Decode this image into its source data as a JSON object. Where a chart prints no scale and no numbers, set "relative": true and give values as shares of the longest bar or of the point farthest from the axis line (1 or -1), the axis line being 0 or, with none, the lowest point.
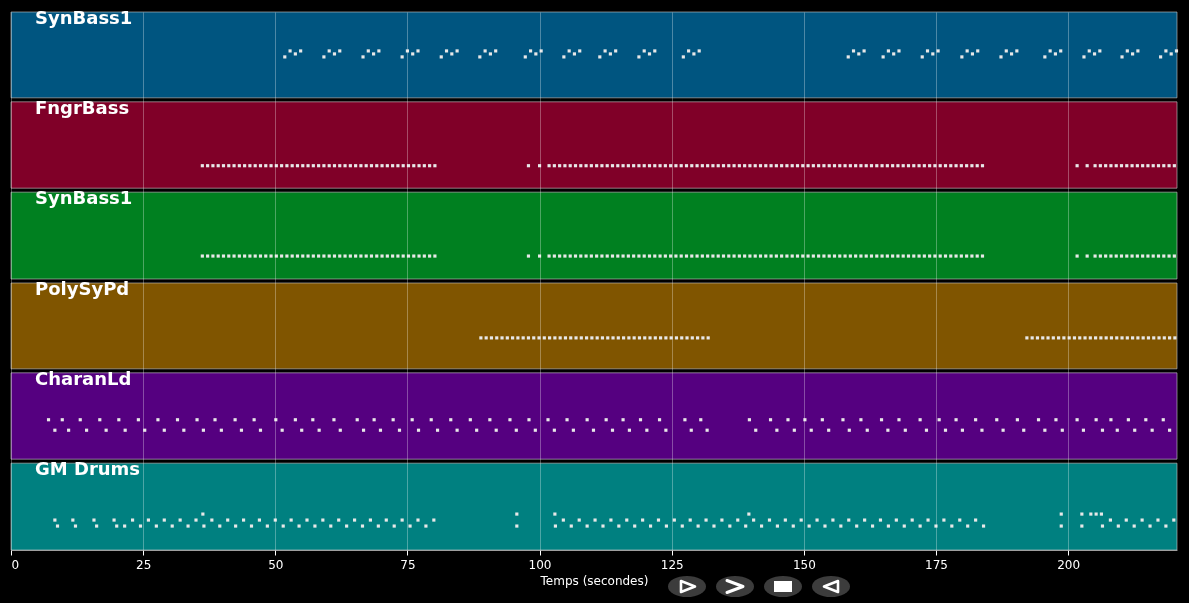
{
  "chart_data": {
    "type": "scatter",
    "relative": true,
    "marker": "square",
    "grid": "x",
    "xlabel": "Temps (secondes)",
    "xlim": [
      0,
      220.6
    ],
    "xticks": [
      0,
      25,
      50,
      75,
      100,
      125,
      150,
      175,
      200
    ],
    "bands": [
      {
        "axis": "y",
        "from": 0.906,
        "to": 1.078,
        "color": "#005580",
        "label": "SynBass1"
      },
      {
        "axis": "y",
        "from": 0.725,
        "to": 0.898,
        "color": "#800028",
        "label": "FngrBass"
      },
      {
        "axis": "y",
        "from": 0.543,
        "to": 0.717,
        "color": "#008020",
        "label": "SynBass1"
      },
      {
        "axis": "y",
        "from": 0.363,
        "to": 0.535,
        "color": "#805500",
        "label": "PolySyPd"
      },
      {
        "axis": "y",
        "from": 0.182,
        "to": 0.355,
        "color": "#550080",
        "label": "CharanLd"
      },
      {
        "axis": "y",
        "from": 0,
        "to": 0.174,
        "color": "#008080",
        "label": "GM Drums"
      }
    ],
    "series": [
      {
        "color": "#e8e8e8",
        "x": [
          51.8,
          52.8,
          53.8,
          54.8,
          59.2,
          60.2,
          61.2,
          62.2,
          66.6,
          67.6,
          68.6,
          69.6,
          74.0,
          75.0,
          76.0,
          77.0,
          81.4,
          82.4,
          83.4,
          84.4,
          88.7,
          89.7,
          90.7,
          91.7,
          97.3,
          98.3,
          99.3,
          100.3,
          104.6,
          105.6,
          106.6,
          107.6,
          111.4,
          112.4,
          113.4,
          114.4,
          118.8,
          119.8,
          120.8,
          121.8,
          127.2,
          128.2,
          129.2,
          130.2,
          158.4,
          159.4,
          160.4,
          161.4,
          165.0,
          166.0,
          167.0,
          168.0,
          172.4,
          173.4,
          174.4,
          175.4,
          179.9,
          180.9,
          181.9,
          182.9,
          187.3,
          188.3,
          189.3,
          190.3,
          195.6,
          196.6,
          197.6,
          198.6,
          203.0,
          204.0,
          205.0,
          206.0,
          210.2,
          211.2,
          212.2,
          213.2,
          217.5,
          218.5,
          219.5,
          220.5
        ],
        "values": [
          0.988,
          1,
          0.994,
          1,
          0.988,
          1,
          0.994,
          1,
          0.988,
          1,
          0.994,
          1,
          0.988,
          1,
          0.994,
          1,
          0.988,
          1,
          0.994,
          1,
          0.988,
          1,
          0.994,
          1,
          0.988,
          1,
          0.994,
          1,
          0.988,
          1,
          0.994,
          1,
          0.988,
          1,
          0.994,
          1,
          0.988,
          1,
          0.994,
          1,
          0.988,
          1,
          0.994,
          1,
          0.988,
          1,
          0.994,
          1,
          0.988,
          1,
          0.994,
          1,
          0.988,
          1,
          0.994,
          1,
          0.988,
          1,
          0.994,
          1,
          0.988,
          1,
          0.994,
          1,
          0.988,
          1,
          0.994,
          1,
          0.988,
          1,
          0.994,
          1,
          0.988,
          1,
          0.994,
          1,
          0.988,
          1,
          0.994,
          1
        ]
      },
      {
        "color": "#e8e8e8",
        "x": [
          36.2,
          37.2,
          38.2,
          39.2,
          40.2,
          41.2,
          42.2,
          43.2,
          44.2,
          45.2,
          46.2,
          47.2,
          48.2,
          49.2,
          50.2,
          51.2,
          52.2,
          53.2,
          54.2,
          55.2,
          56.2,
          57.2,
          58.2,
          59.2,
          60.2,
          61.2,
          62.2,
          63.2,
          64.2,
          65.2,
          66.2,
          67.2,
          68.2,
          69.2,
          70.2,
          71.2,
          72.2,
          73.2,
          74.2,
          75.2,
          76.2,
          77.2,
          78.2,
          79.2,
          80.2,
          97.9,
          100.0,
          101.8,
          102.8,
          103.8,
          104.8,
          105.8,
          106.8,
          107.8,
          108.8,
          109.8,
          110.8,
          111.8,
          112.8,
          113.8,
          114.8,
          115.8,
          116.8,
          117.8,
          118.8,
          119.8,
          120.8,
          121.8,
          122.8,
          123.8,
          124.8,
          125.8,
          126.8,
          127.8,
          128.8,
          129.8,
          130.8,
          131.8,
          132.8,
          133.8,
          134.8,
          135.8,
          136.8,
          137.8,
          138.8,
          139.8,
          140.8,
          141.8,
          142.8,
          143.8,
          144.8,
          145.8,
          146.8,
          147.8,
          148.8,
          149.8,
          150.8,
          151.8,
          152.8,
          153.8,
          154.8,
          155.8,
          156.8,
          157.8,
          158.8,
          159.8,
          160.8,
          161.8,
          162.8,
          163.8,
          164.8,
          165.8,
          166.8,
          167.8,
          168.8,
          169.8,
          170.8,
          171.8,
          172.8,
          173.8,
          174.8,
          175.8,
          176.8,
          177.8,
          178.8,
          179.8,
          180.8,
          181.8,
          182.8,
          183.8,
          201.7,
          203.6,
          205.1,
          206.1,
          207.1,
          208.1,
          209.1,
          210.1,
          211.1,
          212.1,
          213.1,
          214.1,
          215.1,
          216.1,
          217.1,
          218.1,
          219.1,
          220.1
        ],
        "values": [
          0.77,
          0.77,
          0.77,
          0.77,
          0.77,
          0.77,
          0.77,
          0.77,
          0.77,
          0.77,
          0.77,
          0.77,
          0.77,
          0.77,
          0.77,
          0.77,
          0.77,
          0.77,
          0.77,
          0.77,
          0.77,
          0.77,
          0.77,
          0.77,
          0.77,
          0.77,
          0.77,
          0.77,
          0.77,
          0.77,
          0.77,
          0.77,
          0.77,
          0.77,
          0.77,
          0.77,
          0.77,
          0.77,
          0.77,
          0.77,
          0.77,
          0.77,
          0.77,
          0.77,
          0.77,
          0.77,
          0.77,
          0.77,
          0.77,
          0.77,
          0.77,
          0.77,
          0.77,
          0.77,
          0.77,
          0.77,
          0.77,
          0.77,
          0.77,
          0.77,
          0.77,
          0.77,
          0.77,
          0.77,
          0.77,
          0.77,
          0.77,
          0.77,
          0.77,
          0.77,
          0.77,
          0.77,
          0.77,
          0.77,
          0.77,
          0.77,
          0.77,
          0.77,
          0.77,
          0.77,
          0.77,
          0.77,
          0.77,
          0.77,
          0.77,
          0.77,
          0.77,
          0.77,
          0.77,
          0.77,
          0.77,
          0.77,
          0.77,
          0.77,
          0.77,
          0.77,
          0.77,
          0.77,
          0.77,
          0.77,
          0.77,
          0.77,
          0.77,
          0.77,
          0.77,
          0.77,
          0.77,
          0.77,
          0.77,
          0.77,
          0.77,
          0.77,
          0.77,
          0.77,
          0.77,
          0.77,
          0.77,
          0.77,
          0.77,
          0.77,
          0.77,
          0.77,
          0.77,
          0.77,
          0.77,
          0.77,
          0.77,
          0.77,
          0.77,
          0.77,
          0.77,
          0.77,
          0.77,
          0.77,
          0.77,
          0.77,
          0.77,
          0.77,
          0.77,
          0.77,
          0.77,
          0.77,
          0.77,
          0.77,
          0.77,
          0.77,
          0.77,
          0.77
        ]
      },
      {
        "color": "#e8e8e8",
        "x": [
          36.2,
          37.2,
          38.2,
          39.2,
          40.2,
          41.2,
          42.2,
          43.2,
          44.2,
          45.2,
          46.2,
          47.2,
          48.2,
          49.2,
          50.2,
          51.2,
          52.2,
          53.2,
          54.2,
          55.2,
          56.2,
          57.2,
          58.2,
          59.2,
          60.2,
          61.2,
          62.2,
          63.2,
          64.2,
          65.2,
          66.2,
          67.2,
          68.2,
          69.2,
          70.2,
          71.2,
          72.2,
          73.2,
          74.2,
          75.2,
          76.2,
          77.2,
          78.2,
          79.2,
          80.2,
          97.9,
          100.0,
          101.8,
          102.8,
          103.8,
          104.8,
          105.8,
          106.8,
          107.8,
          108.8,
          109.8,
          110.8,
          111.8,
          112.8,
          113.8,
          114.8,
          115.8,
          116.8,
          117.8,
          118.8,
          119.8,
          120.8,
          121.8,
          122.8,
          123.8,
          124.8,
          125.8,
          126.8,
          127.8,
          128.8,
          129.8,
          130.8,
          131.8,
          132.8,
          133.8,
          134.8,
          135.8,
          136.8,
          137.8,
          138.8,
          139.8,
          140.8,
          141.8,
          142.8,
          143.8,
          144.8,
          145.8,
          146.8,
          147.8,
          148.8,
          149.8,
          150.8,
          151.8,
          152.8,
          153.8,
          154.8,
          155.8,
          156.8,
          157.8,
          158.8,
          159.8,
          160.8,
          161.8,
          162.8,
          163.8,
          164.8,
          165.8,
          166.8,
          167.8,
          168.8,
          169.8,
          170.8,
          171.8,
          172.8,
          173.8,
          174.8,
          175.8,
          176.8,
          177.8,
          178.8,
          179.8,
          180.8,
          181.8,
          182.8,
          183.8,
          201.7,
          203.6,
          205.1,
          206.1,
          207.1,
          208.1,
          209.1,
          210.1,
          211.1,
          212.1,
          213.1,
          214.1,
          215.1,
          216.1,
          217.1,
          218.1,
          219.1,
          220.1
        ],
        "values": [
          0.589,
          0.589,
          0.589,
          0.589,
          0.589,
          0.589,
          0.589,
          0.589,
          0.589,
          0.589,
          0.589,
          0.589,
          0.589,
          0.589,
          0.589,
          0.589,
          0.589,
          0.589,
          0.589,
          0.589,
          0.589,
          0.589,
          0.589,
          0.589,
          0.589,
          0.589,
          0.589,
          0.589,
          0.589,
          0.589,
          0.589,
          0.589,
          0.589,
          0.589,
          0.589,
          0.589,
          0.589,
          0.589,
          0.589,
          0.589,
          0.589,
          0.589,
          0.589,
          0.589,
          0.589,
          0.589,
          0.589,
          0.589,
          0.589,
          0.589,
          0.589,
          0.589,
          0.589,
          0.589,
          0.589,
          0.589,
          0.589,
          0.589,
          0.589,
          0.589,
          0.589,
          0.589,
          0.589,
          0.589,
          0.589,
          0.589,
          0.589,
          0.589,
          0.589,
          0.589,
          0.589,
          0.589,
          0.589,
          0.589,
          0.589,
          0.589,
          0.589,
          0.589,
          0.589,
          0.589,
          0.589,
          0.589,
          0.589,
          0.589,
          0.589,
          0.589,
          0.589,
          0.589,
          0.589,
          0.589,
          0.589,
          0.589,
          0.589,
          0.589,
          0.589,
          0.589,
          0.589,
          0.589,
          0.589,
          0.589,
          0.589,
          0.589,
          0.589,
          0.589,
          0.589,
          0.589,
          0.589,
          0.589,
          0.589,
          0.589,
          0.589,
          0.589,
          0.589,
          0.589,
          0.589,
          0.589,
          0.589,
          0.589,
          0.589,
          0.589,
          0.589,
          0.589,
          0.589,
          0.589,
          0.589,
          0.589,
          0.589,
          0.589,
          0.589,
          0.589,
          0.589,
          0.589,
          0.589,
          0.589,
          0.589,
          0.589,
          0.589,
          0.589,
          0.589,
          0.589,
          0.589,
          0.589,
          0.589,
          0.589,
          0.589,
          0.589,
          0.589,
          0.589
        ]
      },
      {
        "color": "#e8e8e8",
        "x": [
          88.9,
          89.9,
          90.9,
          91.9,
          92.9,
          93.9,
          94.9,
          95.9,
          96.9,
          97.9,
          98.9,
          99.9,
          100.9,
          101.9,
          102.9,
          103.9,
          104.9,
          105.9,
          106.9,
          107.9,
          108.9,
          109.9,
          110.9,
          111.9,
          112.9,
          113.9,
          114.9,
          115.9,
          116.9,
          117.9,
          118.9,
          119.9,
          120.9,
          121.9,
          122.9,
          123.9,
          124.9,
          125.9,
          126.9,
          127.9,
          128.9,
          129.9,
          130.9,
          131.9,
          192.2,
          193.2,
          194.2,
          195.2,
          196.2,
          197.2,
          198.2,
          199.2,
          200.2,
          201.2,
          202.2,
          203.2,
          204.2,
          205.2,
          206.2,
          207.2,
          208.2,
          209.2,
          210.2,
          211.2,
          212.2,
          213.2,
          214.2,
          215.2,
          216.2,
          217.2,
          218.2,
          219.2,
          220.2
        ],
        "values": [
          0.425,
          0.425,
          0.425,
          0.425,
          0.425,
          0.425,
          0.425,
          0.425,
          0.425,
          0.425,
          0.425,
          0.425,
          0.425,
          0.425,
          0.425,
          0.425,
          0.425,
          0.425,
          0.425,
          0.425,
          0.425,
          0.425,
          0.425,
          0.425,
          0.425,
          0.425,
          0.425,
          0.425,
          0.425,
          0.425,
          0.425,
          0.425,
          0.425,
          0.425,
          0.425,
          0.425,
          0.425,
          0.425,
          0.425,
          0.425,
          0.425,
          0.425,
          0.425,
          0.425,
          0.425,
          0.425,
          0.425,
          0.425,
          0.425,
          0.425,
          0.425,
          0.425,
          0.425,
          0.425,
          0.425,
          0.425,
          0.425,
          0.425,
          0.425,
          0.425,
          0.425,
          0.425,
          0.425,
          0.425,
          0.425,
          0.425,
          0.425,
          0.425,
          0.425,
          0.425,
          0.425,
          0.425,
          0.425
        ]
      },
      {
        "color": "#e8e8e8",
        "x": [
          7.1,
          8.3,
          9.7,
          10.9,
          13.1,
          14.3,
          16.8,
          18.0,
          20.4,
          21.6,
          24.1,
          25.3,
          27.8,
          29.0,
          31.5,
          32.7,
          35.2,
          36.4,
          38.6,
          39.8,
          42.4,
          43.6,
          46.0,
          47.2,
          50.1,
          51.3,
          53.8,
          55.0,
          57.1,
          58.3,
          61.1,
          62.3,
          65.5,
          66.7,
          68.7,
          69.9,
          72.3,
          73.5,
          75.9,
          77.1,
          79.5,
          80.7,
          83.2,
          84.4,
          86.9,
          88.1,
          90.6,
          91.8,
          94.4,
          95.6,
          98.0,
          99.2,
          101.6,
          102.8,
          105.2,
          106.4,
          109.0,
          110.2,
          112.6,
          113.8,
          115.8,
          117.0,
          119.1,
          120.3,
          122.7,
          123.9,
          127.5,
          128.7,
          130.5,
          131.7,
          139.7,
          140.9,
          143.7,
          144.9,
          147.0,
          148.2,
          150.2,
          151.4,
          153.5,
          154.7,
          157.4,
          158.6,
          160.8,
          162.0,
          164.7,
          165.9,
          168.0,
          169.2,
          172.0,
          173.2,
          175.6,
          176.8,
          178.8,
          180.0,
          182.5,
          183.7,
          186.5,
          187.7,
          190.4,
          191.6,
          194.4,
          195.6,
          197.7,
          198.9,
          201.7,
          202.9,
          205.3,
          206.5,
          208.1,
          209.3,
          211.4,
          212.6,
          214.7,
          215.9,
          218.0,
          219.2
        ],
        "values": [
          0.261,
          0.24,
          0.261,
          0.24,
          0.261,
          0.24,
          0.261,
          0.24,
          0.261,
          0.24,
          0.261,
          0.24,
          0.261,
          0.24,
          0.261,
          0.24,
          0.261,
          0.24,
          0.261,
          0.24,
          0.261,
          0.24,
          0.261,
          0.24,
          0.261,
          0.24,
          0.261,
          0.24,
          0.261,
          0.24,
          0.261,
          0.24,
          0.261,
          0.24,
          0.261,
          0.24,
          0.261,
          0.24,
          0.261,
          0.24,
          0.261,
          0.24,
          0.261,
          0.24,
          0.261,
          0.24,
          0.261,
          0.24,
          0.261,
          0.24,
          0.261,
          0.24,
          0.261,
          0.24,
          0.261,
          0.24,
          0.261,
          0.24,
          0.261,
          0.24,
          0.261,
          0.24,
          0.261,
          0.24,
          0.261,
          0.24,
          0.261,
          0.24,
          0.261,
          0.24,
          0.261,
          0.24,
          0.261,
          0.24,
          0.261,
          0.24,
          0.261,
          0.24,
          0.261,
          0.24,
          0.261,
          0.24,
          0.261,
          0.24,
          0.261,
          0.24,
          0.261,
          0.24,
          0.261,
          0.24,
          0.261,
          0.24,
          0.261,
          0.24,
          0.261,
          0.24,
          0.261,
          0.24,
          0.261,
          0.24,
          0.261,
          0.24,
          0.261,
          0.24,
          0.261,
          0.24,
          0.261,
          0.24,
          0.261,
          0.24,
          0.261,
          0.24,
          0.261,
          0.24,
          0.261,
          0.24
        ]
      },
      {
        "color": "#e8e8e8",
        "x": [
          8.3,
          8.8,
          11.7,
          12.2,
          15.7,
          16.2,
          19.5,
          20.0,
          21.5,
          23,
          24.5,
          26,
          27.5,
          29,
          30.5,
          32,
          33.5,
          35,
          36.3,
          36.5,
          38,
          39.5,
          41,
          42.5,
          44,
          45.5,
          47,
          48.5,
          50,
          51.5,
          53,
          54.5,
          56,
          57.5,
          59,
          60.5,
          62,
          63.5,
          65,
          66.5,
          68,
          69.5,
          71,
          72.5,
          74,
          75.5,
          77,
          78.5,
          80,
          95.7,
          95.7,
          102.9,
          103,
          104.5,
          106,
          107.5,
          109,
          110.5,
          112,
          113.5,
          115,
          116.5,
          118,
          119.5,
          121,
          122.5,
          124,
          125.5,
          127,
          128.5,
          130,
          131.5,
          133,
          134.5,
          136,
          137.5,
          139,
          139.6,
          140.5,
          142,
          143.5,
          145,
          146.5,
          148,
          149.5,
          151,
          152.5,
          154,
          155.5,
          157,
          158.5,
          160,
          161.5,
          163,
          164.5,
          166,
          167.5,
          169,
          170.5,
          172,
          173.5,
          175,
          176.5,
          178,
          179.5,
          181,
          182.5,
          184,
          198.7,
          198.7,
          202.6,
          202.6,
          204.3,
          205.3,
          206.3,
          206.5,
          208,
          209.5,
          211,
          212.5,
          214,
          215.5,
          217,
          218.5,
          220
        ],
        "values": [
          0.06,
          0.048,
          0.06,
          0.048,
          0.06,
          0.048,
          0.06,
          0.048,
          0.048,
          0.06,
          0.048,
          0.06,
          0.048,
          0.06,
          0.048,
          0.06,
          0.048,
          0.06,
          0.072,
          0.048,
          0.06,
          0.048,
          0.06,
          0.048,
          0.06,
          0.048,
          0.06,
          0.048,
          0.06,
          0.048,
          0.06,
          0.048,
          0.06,
          0.048,
          0.06,
          0.048,
          0.06,
          0.048,
          0.06,
          0.048,
          0.06,
          0.048,
          0.06,
          0.048,
          0.06,
          0.048,
          0.06,
          0.048,
          0.06,
          0.072,
          0.048,
          0.072,
          0.048,
          0.06,
          0.048,
          0.06,
          0.048,
          0.06,
          0.048,
          0.06,
          0.048,
          0.06,
          0.048,
          0.06,
          0.048,
          0.06,
          0.048,
          0.06,
          0.048,
          0.06,
          0.048,
          0.06,
          0.048,
          0.06,
          0.048,
          0.06,
          0.048,
          0.072,
          0.06,
          0.048,
          0.06,
          0.048,
          0.06,
          0.048,
          0.06,
          0.048,
          0.06,
          0.048,
          0.06,
          0.048,
          0.06,
          0.048,
          0.06,
          0.048,
          0.06,
          0.048,
          0.06,
          0.048,
          0.06,
          0.048,
          0.06,
          0.048,
          0.06,
          0.048,
          0.06,
          0.048,
          0.06,
          0.048,
          0.072,
          0.048,
          0.072,
          0.048,
          0.072,
          0.072,
          0.072,
          0.048,
          0.06,
          0.048,
          0.06,
          0.048,
          0.06,
          0.048,
          0.06,
          0.048,
          0.06
        ]
      }
    ]
  }
}
